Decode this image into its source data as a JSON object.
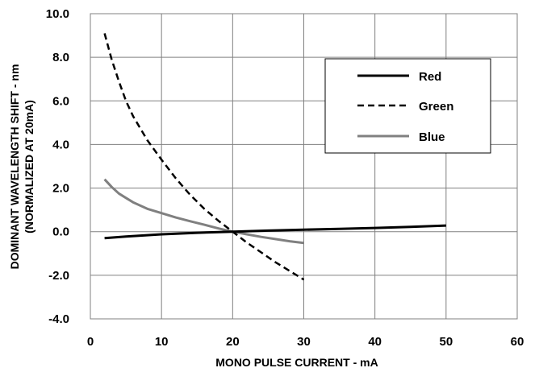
{
  "chart_data": {
    "type": "line",
    "xlabel": "MONO PULSE CURRENT - mA",
    "ylabel": [
      "DOMINANT WAVELENGTH SHIFT - nm",
      "(NORMALIZED AT 20mA)"
    ],
    "xlim": [
      0,
      60
    ],
    "ylim": [
      -4,
      10
    ],
    "x_ticks": [
      0,
      10,
      20,
      30,
      40,
      50,
      60
    ],
    "y_ticks": [
      10,
      8,
      6,
      4,
      2,
      0,
      -2,
      -4
    ],
    "x_tick_labels": [
      "0",
      "10",
      "20",
      "30",
      "40",
      "50",
      "60"
    ],
    "y_tick_labels": [
      "10.0",
      "8.0",
      "6.0",
      "4.0",
      "2.0",
      "0.0",
      "-2.0",
      "-4.0"
    ],
    "grid": true,
    "legend_position": "top-right",
    "series": [
      {
        "name": "Red",
        "color": "#000000",
        "dash": "solid",
        "points": [
          [
            2,
            -0.3
          ],
          [
            5,
            -0.22
          ],
          [
            10,
            -0.12
          ],
          [
            15,
            -0.05
          ],
          [
            20,
            0.0
          ],
          [
            25,
            0.05
          ],
          [
            30,
            0.09
          ],
          [
            35,
            0.13
          ],
          [
            40,
            0.17
          ],
          [
            45,
            0.22
          ],
          [
            50,
            0.28
          ]
        ]
      },
      {
        "name": "Green",
        "color": "#000000",
        "dash": "dashed",
        "points": [
          [
            2,
            9.1
          ],
          [
            3,
            7.9
          ],
          [
            4,
            6.9
          ],
          [
            5,
            6.0
          ],
          [
            6,
            5.3
          ],
          [
            8,
            4.2
          ],
          [
            10,
            3.3
          ],
          [
            12,
            2.45
          ],
          [
            14,
            1.7
          ],
          [
            16,
            1.05
          ],
          [
            18,
            0.5
          ],
          [
            20,
            0.0
          ],
          [
            22,
            -0.5
          ],
          [
            24,
            -0.95
          ],
          [
            26,
            -1.4
          ],
          [
            28,
            -1.8
          ],
          [
            30,
            -2.2
          ]
        ]
      },
      {
        "name": "Blue",
        "color": "#808080",
        "dash": "solid",
        "points": [
          [
            2,
            2.4
          ],
          [
            3,
            2.05
          ],
          [
            4,
            1.75
          ],
          [
            5,
            1.55
          ],
          [
            6,
            1.35
          ],
          [
            8,
            1.05
          ],
          [
            10,
            0.85
          ],
          [
            12,
            0.65
          ],
          [
            14,
            0.48
          ],
          [
            16,
            0.32
          ],
          [
            18,
            0.15
          ],
          [
            20,
            0.0
          ],
          [
            22,
            -0.12
          ],
          [
            24,
            -0.24
          ],
          [
            26,
            -0.34
          ],
          [
            28,
            -0.44
          ],
          [
            30,
            -0.52
          ]
        ]
      }
    ]
  }
}
